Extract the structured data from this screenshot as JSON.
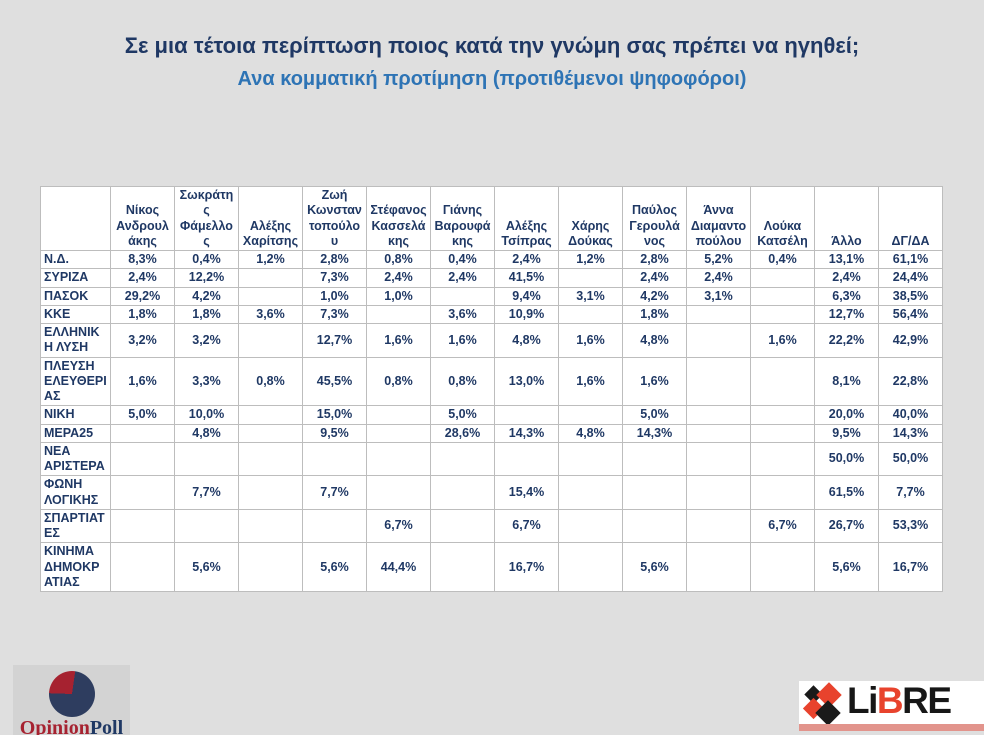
{
  "chart_data": {
    "type": "table",
    "title": "Σε μια τέτοια περίπτωση ποιος κατά την γνώμη σας πρέπει να ηγηθεί;",
    "subtitle": "Ανα κομματική προτίμηση (προτιθέμενοι ψηφοφόροι)",
    "columns": [
      "Νίκος Ανδρουλάκης",
      "Σωκράτης Φάμελλος",
      "Αλέξης Χαρίτσης",
      "Ζωή Κωνσταντοπούλου",
      "Στέφανος Κασσελάκης",
      "Γιάνης Βαρουφάκης",
      "Αλέξης Τσίπρας",
      "Χάρης Δούκας",
      "Παύλος Γερουλάνος",
      "Άννα Διαμαντοπούλου",
      "Λούκα Κατσέλη",
      "Άλλο",
      "ΔΓ/ΔΑ"
    ],
    "rows": [
      {
        "label": "Ν.Δ.",
        "values": [
          "8,3%",
          "0,4%",
          "1,2%",
          "2,8%",
          "0,8%",
          "0,4%",
          "2,4%",
          "1,2%",
          "2,8%",
          "5,2%",
          "0,4%",
          "13,1%",
          "61,1%"
        ]
      },
      {
        "label": "ΣΥΡΙΖΑ",
        "values": [
          "2,4%",
          "12,2%",
          "",
          "7,3%",
          "2,4%",
          "2,4%",
          "41,5%",
          "",
          "2,4%",
          "2,4%",
          "",
          "2,4%",
          "24,4%"
        ]
      },
      {
        "label": "ΠΑΣΟΚ",
        "values": [
          "29,2%",
          "4,2%",
          "",
          "1,0%",
          "1,0%",
          "",
          "9,4%",
          "3,1%",
          "4,2%",
          "3,1%",
          "",
          "6,3%",
          "38,5%"
        ]
      },
      {
        "label": "ΚΚΕ",
        "values": [
          "1,8%",
          "1,8%",
          "3,6%",
          "7,3%",
          "",
          "3,6%",
          "10,9%",
          "",
          "1,8%",
          "",
          "",
          "12,7%",
          "56,4%"
        ]
      },
      {
        "label": "ΕΛΛΗΝΙΚΗ ΛΥΣΗ",
        "values": [
          "3,2%",
          "3,2%",
          "",
          "12,7%",
          "1,6%",
          "1,6%",
          "4,8%",
          "1,6%",
          "4,8%",
          "",
          "1,6%",
          "22,2%",
          "42,9%"
        ]
      },
      {
        "label": "ΠΛΕΥΣΗ ΕΛΕΥΘΕΡΙΑΣ",
        "values": [
          "1,6%",
          "3,3%",
          "0,8%",
          "45,5%",
          "0,8%",
          "0,8%",
          "13,0%",
          "1,6%",
          "1,6%",
          "",
          "",
          "8,1%",
          "22,8%"
        ]
      },
      {
        "label": "ΝΙΚΗ",
        "values": [
          "5,0%",
          "10,0%",
          "",
          "15,0%",
          "",
          "5,0%",
          "",
          "",
          "5,0%",
          "",
          "",
          "20,0%",
          "40,0%"
        ]
      },
      {
        "label": "ΜΕΡΑ25",
        "values": [
          "",
          "4,8%",
          "",
          "9,5%",
          "",
          "28,6%",
          "14,3%",
          "4,8%",
          "14,3%",
          "",
          "",
          "9,5%",
          "14,3%"
        ]
      },
      {
        "label": "ΝΕΑ ΑΡΙΣΤΕΡΑ",
        "values": [
          "",
          "",
          "",
          "",
          "",
          "",
          "",
          "",
          "",
          "",
          "",
          "50,0%",
          "50,0%"
        ]
      },
      {
        "label": "ΦΩΝΗ ΛΟΓΙΚΗΣ",
        "values": [
          "",
          "7,7%",
          "",
          "7,7%",
          "",
          "",
          "15,4%",
          "",
          "",
          "",
          "",
          "61,5%",
          "7,7%"
        ]
      },
      {
        "label": "ΣΠΑΡΤΙΑΤΕΣ",
        "values": [
          "",
          "",
          "",
          "",
          "6,7%",
          "",
          "6,7%",
          "",
          "",
          "",
          "6,7%",
          "26,7%",
          "53,3%"
        ]
      },
      {
        "label": "ΚΙΝΗΜΑ ΔΗΜΟΚΡΑΤΙΑΣ",
        "values": [
          "",
          "5,6%",
          "",
          "5,6%",
          "44,4%",
          "",
          "16,7%",
          "",
          "5,6%",
          "",
          "",
          "5,6%",
          "16,7%"
        ]
      }
    ],
    "layout": {
      "grid": true,
      "header_rows": 1,
      "label_column": true
    }
  },
  "footer": {
    "opinion_poll": {
      "part_red": "Opinion",
      "part_navy": "Poll"
    },
    "libre": {
      "part1": "Li",
      "part2": "B",
      "part3": "RE"
    }
  },
  "colors": {
    "page_background": "#dfdfdf",
    "title_navy": "#1f3864",
    "subtitle_blue": "#2e74b5",
    "table_border": "#bdbdbd",
    "cell_background": "#ffffff",
    "logo_red": "#a62230",
    "libre_orange": "#e8432d",
    "libre_black": "#171717"
  }
}
